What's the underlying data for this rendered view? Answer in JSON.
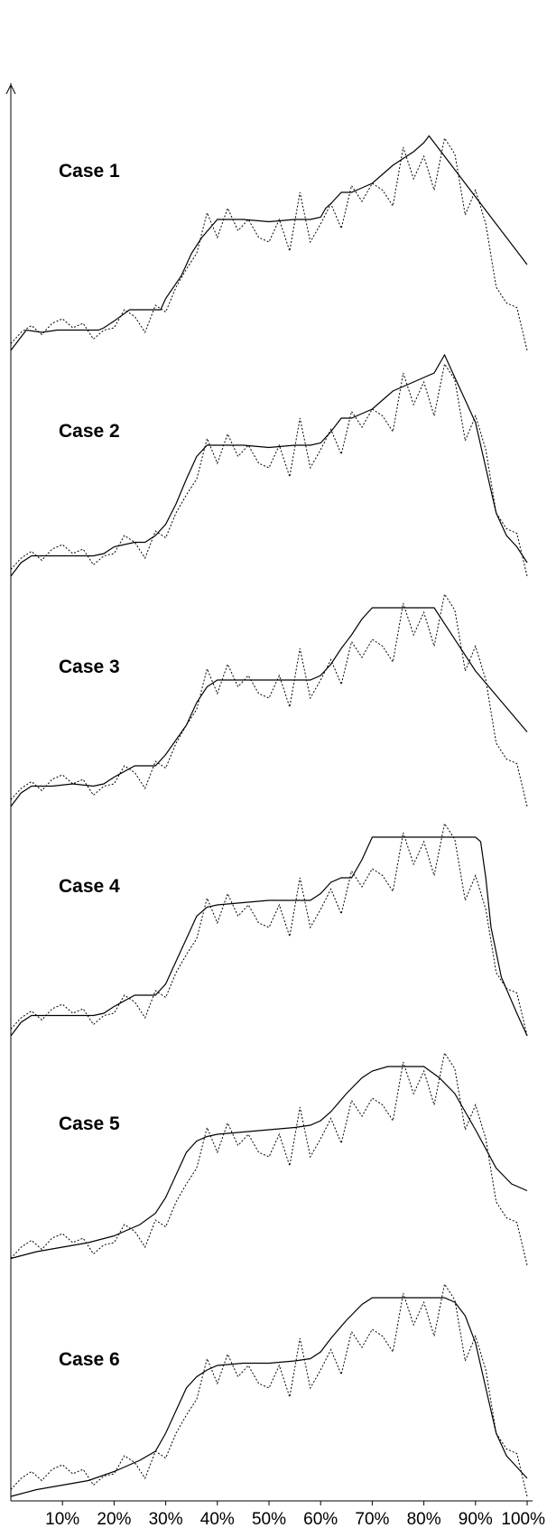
{
  "chart_data": {
    "type": "line",
    "x_tick_labels": [
      "10%",
      "20%",
      "30%",
      "40%",
      "50%",
      "60%",
      "70%",
      "80%",
      "90%",
      "100%"
    ],
    "x_range": [
      0,
      100
    ],
    "grid": false,
    "noisy_series": {
      "x": [
        0,
        2,
        4,
        6,
        8,
        10,
        12,
        14,
        16,
        18,
        20,
        22,
        24,
        26,
        28,
        30,
        32,
        34,
        36,
        38,
        40,
        42,
        44,
        46,
        48,
        50,
        52,
        54,
        56,
        58,
        60,
        62,
        64,
        66,
        68,
        70,
        72,
        74,
        76,
        78,
        80,
        82,
        84,
        86,
        88,
        90,
        92,
        94,
        96,
        98,
        100
      ],
      "values": [
        0.05,
        0.1,
        0.13,
        0.09,
        0.14,
        0.16,
        0.12,
        0.14,
        0.07,
        0.11,
        0.12,
        0.2,
        0.17,
        0.1,
        0.22,
        0.19,
        0.3,
        0.38,
        0.45,
        0.63,
        0.52,
        0.65,
        0.55,
        0.6,
        0.52,
        0.5,
        0.6,
        0.46,
        0.72,
        0.5,
        0.58,
        0.67,
        0.56,
        0.75,
        0.68,
        0.76,
        0.73,
        0.66,
        0.92,
        0.78,
        0.88,
        0.73,
        0.96,
        0.89,
        0.62,
        0.73,
        0.58,
        0.3,
        0.23,
        0.21,
        0.02
      ]
    },
    "cases": [
      {
        "label": "Case 1",
        "x": [
          0,
          2,
          3,
          6,
          9,
          12,
          15,
          17,
          18,
          20,
          23,
          26,
          27,
          29,
          30,
          33,
          35,
          37,
          40,
          45,
          50,
          55,
          58,
          60,
          61,
          62,
          64,
          66,
          68,
          70,
          72,
          74,
          76,
          78,
          80,
          81,
          90,
          100
        ],
        "y": [
          0.02,
          0.08,
          0.11,
          0.1,
          0.11,
          0.11,
          0.11,
          0.11,
          0.12,
          0.15,
          0.2,
          0.2,
          0.2,
          0.2,
          0.25,
          0.35,
          0.45,
          0.52,
          0.6,
          0.6,
          0.59,
          0.6,
          0.6,
          0.61,
          0.65,
          0.67,
          0.72,
          0.72,
          0.74,
          0.76,
          0.8,
          0.84,
          0.87,
          0.9,
          0.94,
          0.97,
          0.7,
          0.4
        ]
      },
      {
        "label": "Case 2",
        "x": [
          0,
          2,
          4,
          8,
          12,
          16,
          18,
          20,
          24,
          26,
          28,
          30,
          32,
          34,
          36,
          38,
          40,
          45,
          50,
          55,
          58,
          60,
          62,
          64,
          66,
          68,
          70,
          72,
          74,
          76,
          78,
          80,
          82,
          84,
          86,
          88,
          90,
          92,
          94,
          96,
          98,
          100
        ],
        "y": [
          0.02,
          0.08,
          0.11,
          0.11,
          0.11,
          0.11,
          0.12,
          0.15,
          0.17,
          0.17,
          0.2,
          0.25,
          0.34,
          0.45,
          0.55,
          0.6,
          0.6,
          0.6,
          0.59,
          0.6,
          0.6,
          0.61,
          0.66,
          0.72,
          0.72,
          0.74,
          0.76,
          0.8,
          0.84,
          0.86,
          0.88,
          0.9,
          0.92,
          1.0,
          0.9,
          0.8,
          0.7,
          0.5,
          0.3,
          0.2,
          0.15,
          0.08
        ]
      },
      {
        "label": "Case 3",
        "x": [
          0,
          2,
          4,
          8,
          12,
          16,
          18,
          20,
          24,
          26,
          28,
          30,
          34,
          36,
          38,
          40,
          45,
          50,
          55,
          58,
          60,
          62,
          64,
          66,
          68,
          70,
          76,
          82,
          90,
          100
        ],
        "y": [
          0.02,
          0.08,
          0.11,
          0.11,
          0.12,
          0.11,
          0.12,
          0.15,
          0.2,
          0.2,
          0.2,
          0.25,
          0.38,
          0.48,
          0.55,
          0.58,
          0.58,
          0.58,
          0.58,
          0.58,
          0.6,
          0.65,
          0.72,
          0.78,
          0.85,
          0.9,
          0.9,
          0.9,
          0.62,
          0.35
        ]
      },
      {
        "label": "Case 4",
        "x": [
          0,
          2,
          4,
          8,
          12,
          16,
          18,
          20,
          24,
          26,
          28,
          30,
          32,
          34,
          36,
          38,
          40,
          45,
          50,
          55,
          58,
          60,
          62,
          64,
          66,
          68,
          70,
          80,
          90,
          91,
          92,
          93,
          95,
          98,
          100
        ],
        "y": [
          0.02,
          0.08,
          0.11,
          0.11,
          0.11,
          0.11,
          0.12,
          0.15,
          0.2,
          0.2,
          0.2,
          0.25,
          0.35,
          0.45,
          0.55,
          0.59,
          0.6,
          0.61,
          0.62,
          0.62,
          0.62,
          0.65,
          0.7,
          0.72,
          0.72,
          0.8,
          0.9,
          0.9,
          0.9,
          0.88,
          0.72,
          0.5,
          0.28,
          0.12,
          0.02
        ]
      },
      {
        "label": "Case 5",
        "x": [
          0,
          5,
          10,
          15,
          20,
          25,
          28,
          30,
          32,
          34,
          36,
          38,
          40,
          45,
          50,
          55,
          58,
          60,
          62,
          65,
          68,
          70,
          73,
          77,
          80,
          83,
          86,
          90,
          94,
          97,
          100
        ],
        "y": [
          0.05,
          0.08,
          0.1,
          0.12,
          0.15,
          0.2,
          0.25,
          0.32,
          0.42,
          0.52,
          0.57,
          0.59,
          0.6,
          0.61,
          0.62,
          0.63,
          0.64,
          0.66,
          0.7,
          0.78,
          0.85,
          0.88,
          0.9,
          0.9,
          0.9,
          0.85,
          0.78,
          0.62,
          0.45,
          0.38,
          0.35
        ]
      },
      {
        "label": "Case 6",
        "x": [
          0,
          5,
          10,
          15,
          20,
          25,
          28,
          30,
          32,
          34,
          36,
          38,
          40,
          45,
          50,
          55,
          58,
          60,
          62,
          65,
          68,
          70,
          73,
          76,
          80,
          84,
          86,
          88,
          90,
          92,
          94,
          96,
          98,
          100
        ],
        "y": [
          0.02,
          0.05,
          0.07,
          0.09,
          0.13,
          0.18,
          0.22,
          0.3,
          0.4,
          0.5,
          0.55,
          0.58,
          0.6,
          0.61,
          0.61,
          0.62,
          0.63,
          0.66,
          0.72,
          0.8,
          0.87,
          0.9,
          0.9,
          0.9,
          0.9,
          0.9,
          0.88,
          0.82,
          0.7,
          0.5,
          0.3,
          0.2,
          0.15,
          0.1
        ]
      }
    ]
  }
}
